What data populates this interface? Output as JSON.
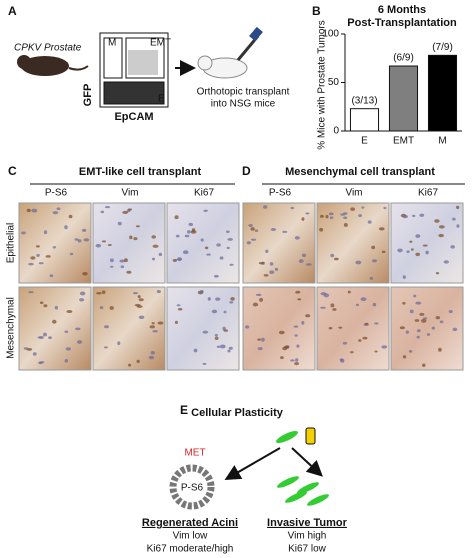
{
  "panel_a": {
    "letter": "A",
    "source": "CPKV Prostate",
    "gate_m": "M",
    "gate_emt": "EMT",
    "gate_e": "E",
    "y_axis": "GFP",
    "x_axis": "EpCAM",
    "transplant_1": "Orthotopic transplant",
    "transplant_2": "into NSG mice"
  },
  "chart_data": {
    "type": "bar",
    "letter": "B",
    "title": "6 Months",
    "subtitle": "Post-Transplantation",
    "y_label": "% Mice with Prostate Tumors",
    "categories": [
      "E",
      "EMT",
      "M"
    ],
    "values": [
      23,
      67,
      78
    ],
    "bar_labels": [
      "(3/13)",
      "(6/9)",
      "(7/9)"
    ],
    "colors": [
      "#ffffff",
      "#7f7f7f",
      "#000000"
    ],
    "ylim": [
      0,
      100
    ],
    "yticks": [
      0,
      50,
      100
    ]
  },
  "panel_c": {
    "letter": "C",
    "title": "EMT-like cell transplant",
    "columns": [
      "P-S6",
      "Vim",
      "Ki67"
    ],
    "rows": [
      "Epithelial",
      "Mesenchymal"
    ]
  },
  "panel_d": {
    "letter": "D",
    "title": "Mesenchymal cell transplant",
    "columns": [
      "P-S6",
      "Vim",
      "Ki67"
    ]
  },
  "panel_e": {
    "letter": "E",
    "title": "Cellular Plasticity",
    "arrow_label": "MET",
    "stain": "P-S6",
    "left_title": "Regenerated Acini",
    "left_lines": [
      "Vim low",
      "Ki67 moderate/high"
    ],
    "right_title": "Invasive Tumor",
    "right_lines": [
      "Vim high",
      "Ki67 low"
    ]
  }
}
